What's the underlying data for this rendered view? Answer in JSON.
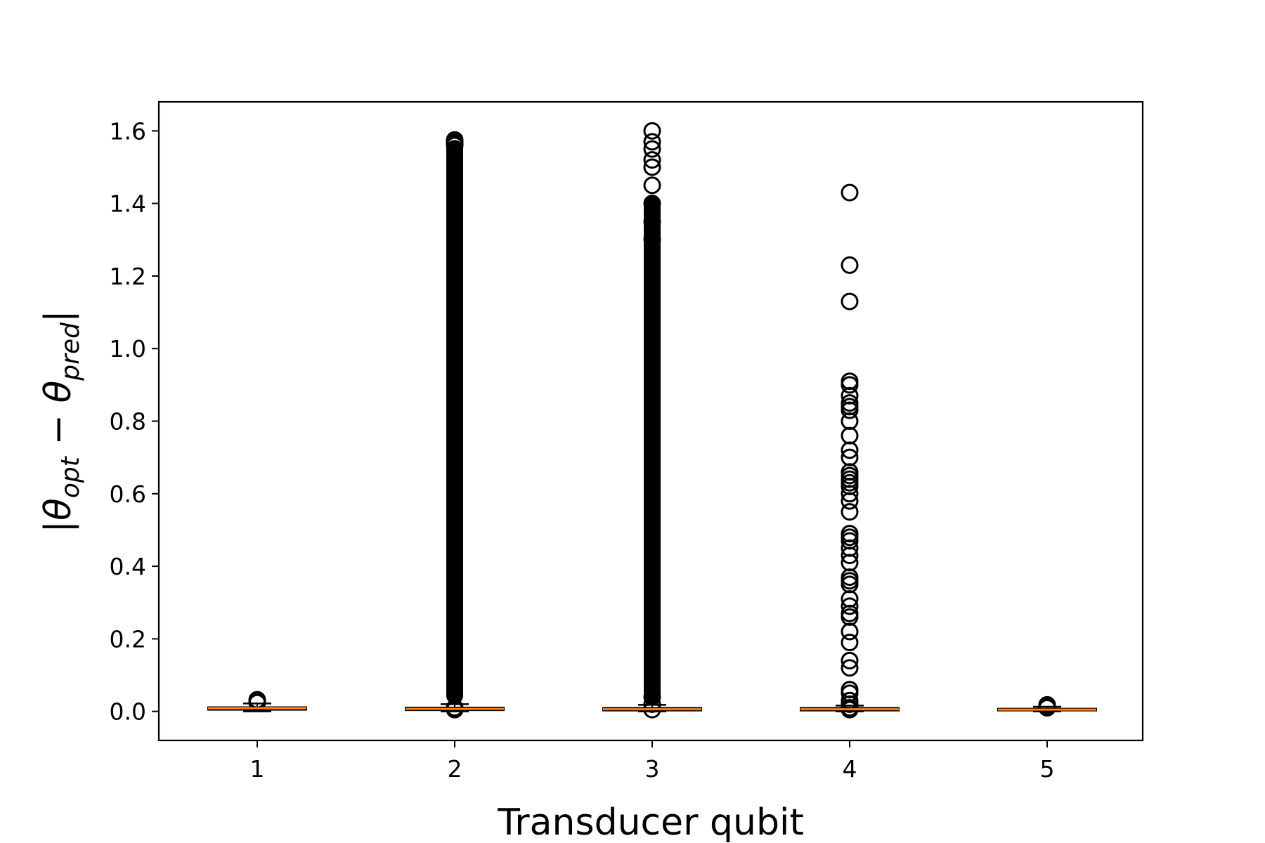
{
  "chart_data": {
    "type": "box",
    "title": "",
    "xlabel": "Transducer qubit",
    "ylabel_parts": {
      "prefix": "|θ",
      "sub1": "opt",
      "middle": " − θ",
      "sub2": "pred",
      "suffix": "|"
    },
    "categories": [
      "1",
      "2",
      "3",
      "4",
      "5"
    ],
    "ylim": [
      -0.08,
      1.68
    ],
    "yticks": [
      {
        "value": 0.0,
        "label": "0.0"
      },
      {
        "value": 0.2,
        "label": "0.2"
      },
      {
        "value": 0.4,
        "label": "0.4"
      },
      {
        "value": 0.6,
        "label": "0.6"
      },
      {
        "value": 0.8,
        "label": "0.8"
      },
      {
        "value": 1.0,
        "label": "1.0"
      },
      {
        "value": 1.2,
        "label": "1.2"
      },
      {
        "value": 1.4,
        "label": "1.4"
      },
      {
        "value": 1.6,
        "label": "1.6"
      }
    ],
    "box_color": "#000000",
    "median_color": "#ff7f0e",
    "boxes": [
      {
        "label": "1",
        "whisker_low": 0.0,
        "q1": 0.004,
        "median": 0.009,
        "q3": 0.012,
        "whisker_high": 0.022,
        "outliers": [
          0.024,
          0.028,
          0.032
        ],
        "outlier_band": null
      },
      {
        "label": "2",
        "whisker_low": 0.0,
        "q1": 0.003,
        "median": 0.007,
        "q3": 0.011,
        "whisker_high": 0.02,
        "outliers": [
          0.005,
          0.01,
          1.56,
          1.565,
          1.57,
          1.575
        ],
        "outlier_band": [
          0.02,
          1.575
        ]
      },
      {
        "label": "3",
        "whisker_low": 0.0,
        "q1": 0.002,
        "median": 0.006,
        "q3": 0.01,
        "whisker_high": 0.018,
        "outliers": [
          0.005,
          0.02,
          0.04,
          1.3,
          1.35,
          1.4,
          1.45,
          1.5,
          1.52,
          1.55,
          1.57,
          1.6
        ],
        "outlier_band": [
          0.02,
          1.42
        ]
      },
      {
        "label": "4",
        "whisker_low": 0.0,
        "q1": 0.002,
        "median": 0.006,
        "q3": 0.01,
        "whisker_high": 0.016,
        "outliers": [
          0.005,
          0.01,
          0.02,
          0.03,
          0.05,
          0.06,
          0.12,
          0.14,
          0.19,
          0.22,
          0.26,
          0.27,
          0.29,
          0.31,
          0.35,
          0.36,
          0.37,
          0.41,
          0.43,
          0.45,
          0.47,
          0.48,
          0.49,
          0.55,
          0.58,
          0.6,
          0.62,
          0.63,
          0.64,
          0.65,
          0.66,
          0.7,
          0.72,
          0.76,
          0.8,
          0.83,
          0.84,
          0.85,
          0.87,
          0.9,
          0.91,
          1.13,
          1.23,
          1.43
        ],
        "outlier_band": null
      },
      {
        "label": "5",
        "whisker_low": 0.0,
        "q1": 0.002,
        "median": 0.005,
        "q3": 0.008,
        "whisker_high": 0.013,
        "outliers": [
          0.01,
          0.015,
          0.018
        ],
        "outlier_band": null
      }
    ],
    "grid": false,
    "legend": "none"
  }
}
